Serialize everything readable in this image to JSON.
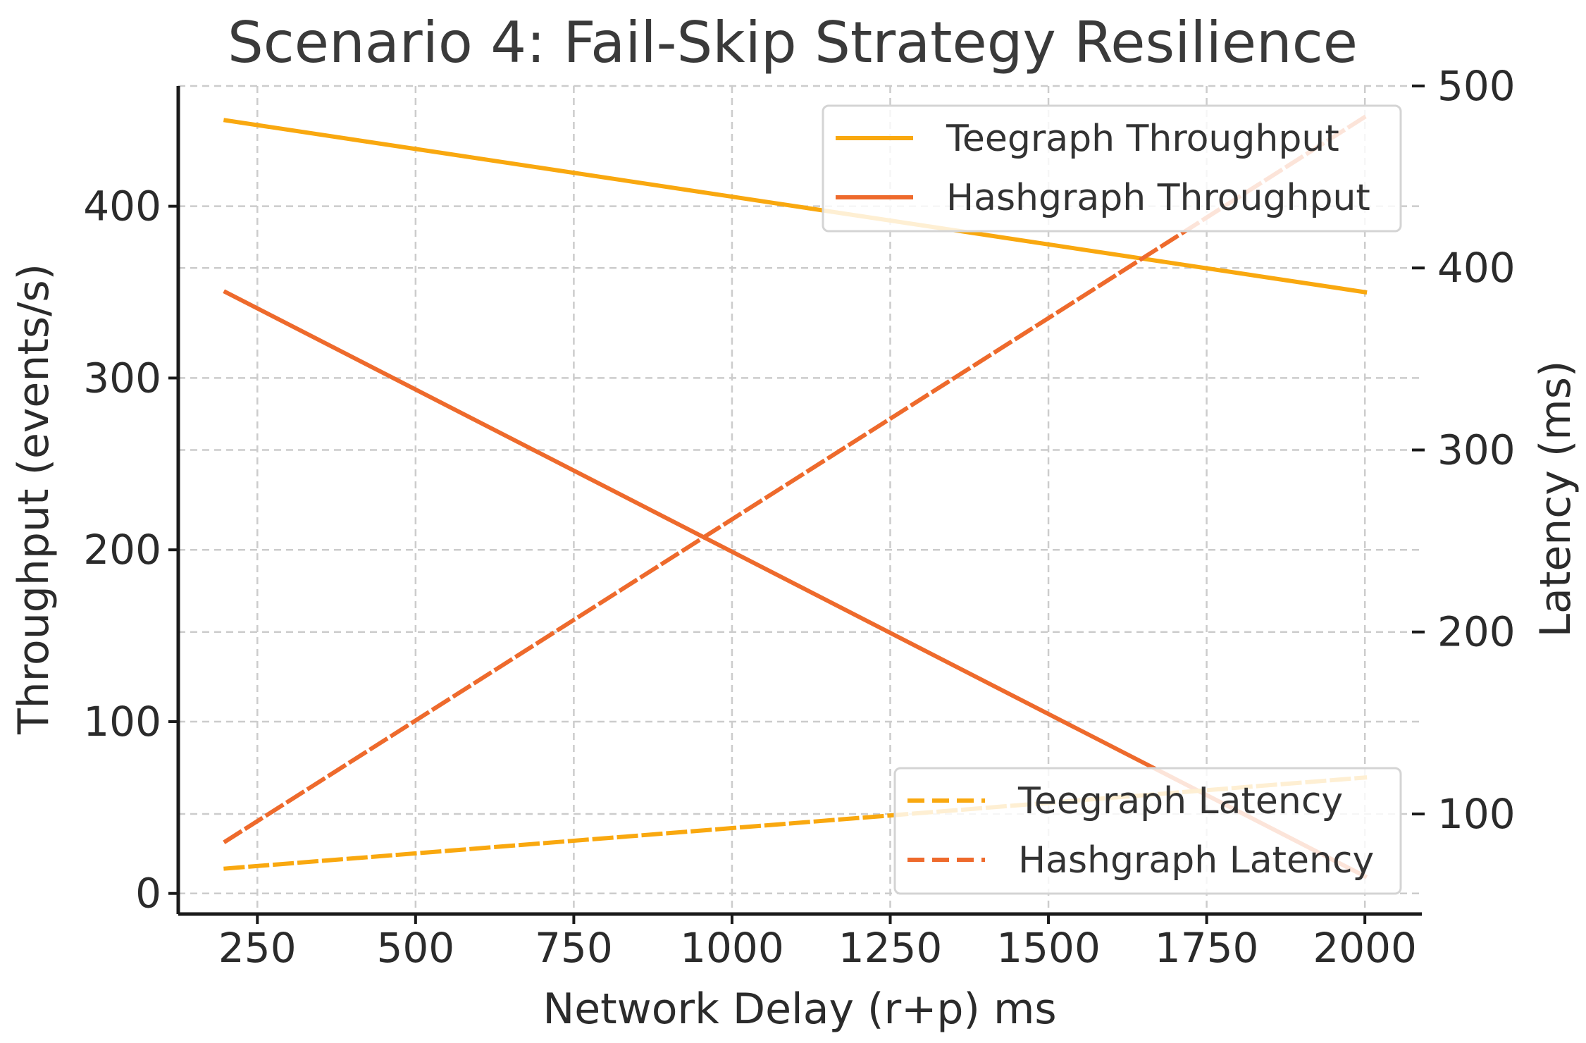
{
  "chart_data": {
    "type": "line",
    "title": "Scenario 4: Fail-Skip Strategy Resilience",
    "xlabel": "Network Delay (r+p) ms",
    "ylabel_left": "Throughput (events/s)",
    "ylabel_right": "Latency (ms)",
    "x": [
      200,
      2000
    ],
    "xlim": [
      125,
      2090
    ],
    "xticks": [
      250,
      500,
      750,
      1000,
      1250,
      1500,
      1750,
      2000
    ],
    "ylim_left": [
      -12,
      470
    ],
    "yticks_left": [
      0,
      100,
      200,
      300,
      400
    ],
    "ylim_right": [
      45,
      500
    ],
    "yticks_right": [
      100,
      200,
      300,
      400,
      500
    ],
    "grid": true,
    "colors": {
      "teegraph": "#f9a80f",
      "hashgraph": "#ee6a2c"
    },
    "series": [
      {
        "name": "Teegraph Throughput",
        "axis": "left",
        "style": "solid",
        "color": "#f9a80f",
        "values": [
          450,
          350
        ]
      },
      {
        "name": "Hashgraph Throughput",
        "axis": "left",
        "style": "solid",
        "color": "#ee6a2c",
        "values": [
          350,
          10
        ]
      },
      {
        "name": "Teegraph Latency",
        "axis": "right",
        "style": "dashed",
        "color": "#f9a80f",
        "values": [
          70,
          120
        ]
      },
      {
        "name": "Hashgraph Latency",
        "axis": "right",
        "style": "dashed",
        "color": "#ee6a2c",
        "values": [
          85,
          483
        ]
      }
    ],
    "legends": [
      {
        "placement": "upper-right",
        "entries": [
          "Teegraph Throughput",
          "Hashgraph Throughput"
        ]
      },
      {
        "placement": "lower-right",
        "entries": [
          "Teegraph Latency",
          "Hashgraph Latency"
        ]
      }
    ]
  }
}
